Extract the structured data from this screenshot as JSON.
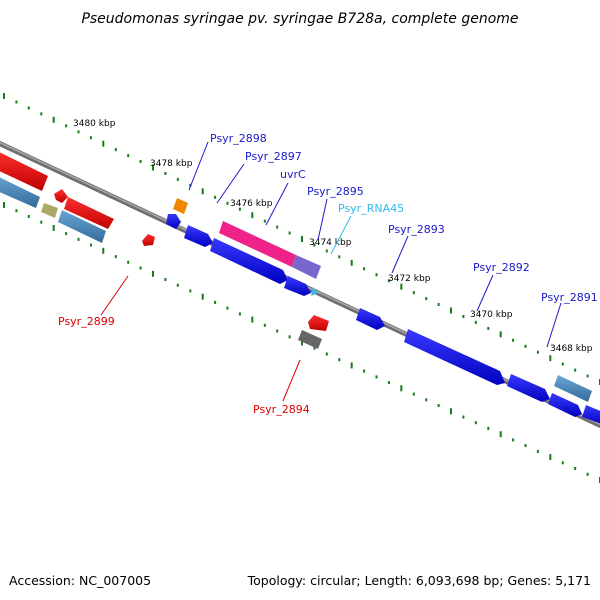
{
  "title": "Pseudomonas syringae pv. syringae B728a, complete genome",
  "footer": {
    "accession": "Accession: NC_007005",
    "topology": "Topology: circular; Length: 6,093,698 bp; Genes: 5,171"
  },
  "kbp_labels": [
    "3480 kbp",
    "3478 kbp",
    "3476 kbp",
    "3474 kbp",
    "3472 kbp",
    "3470 kbp",
    "3468 kbp"
  ],
  "gene_labels": [
    {
      "name": "Psyr_2898",
      "color": "#1a1acc"
    },
    {
      "name": "Psyr_2897",
      "color": "#1a1acc"
    },
    {
      "name": "uvrC",
      "color": "#1a1acc"
    },
    {
      "name": "Psyr_2895",
      "color": "#1a1acc"
    },
    {
      "name": "Psyr_RNA45",
      "color": "#33bbee"
    },
    {
      "name": "Psyr_2893",
      "color": "#1a1acc"
    },
    {
      "name": "Psyr_2892",
      "color": "#1a1acc"
    },
    {
      "name": "Psyr_2891",
      "color": "#1a1acc"
    },
    {
      "name": "Psyr_2899",
      "color": "#dd0000"
    },
    {
      "name": "Psyr_2894",
      "color": "#dd0000"
    }
  ],
  "colors": {
    "backbone": "#8a8a8a",
    "tick": "#1a7a1a",
    "blue_gene": "#1010e0",
    "red_gene": "#ee0000",
    "steel_gene": "#4a88bb",
    "magenta_gene": "#ee2288",
    "orange_gene": "#ee8800",
    "purple_gene": "#7766cc",
    "olive_gene": "#aaaa66",
    "gray_gene": "#666666",
    "rna_gene": "#33bbee"
  }
}
